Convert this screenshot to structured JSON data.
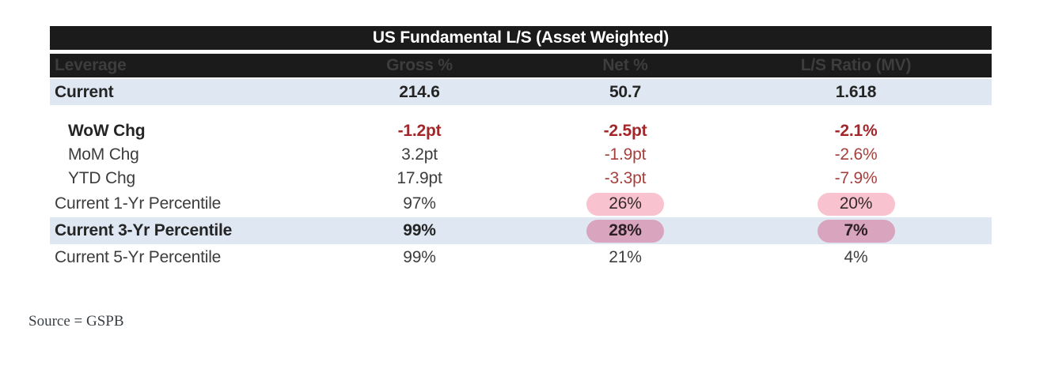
{
  "table": {
    "title": "US Fundamental L/S (Asset Weighted)",
    "columns": {
      "c0": "Leverage",
      "c1": "Gross %",
      "c2": "Net %",
      "c3": "L/S Ratio (MV)"
    },
    "rows": {
      "current": {
        "label": "Current",
        "gross": "214.6",
        "net": "50.7",
        "ls": "1.618"
      },
      "wow": {
        "label": "WoW Chg",
        "gross": "-1.2pt",
        "net": "-2.5pt",
        "ls": "-2.1%"
      },
      "mom": {
        "label": "MoM Chg",
        "gross": "3.2pt",
        "net": "-1.9pt",
        "ls": "-2.6%"
      },
      "ytd": {
        "label": "YTD Chg",
        "gross": "17.9pt",
        "net": "-3.3pt",
        "ls": "-7.9%"
      },
      "pct1yr": {
        "label": "Current 1-Yr Percentile",
        "gross": "97%",
        "net": "26%",
        "ls": "20%"
      },
      "pct3yr": {
        "label": "Current 3-Yr Percentile",
        "gross": "99%",
        "net": "28%",
        "ls": "7%"
      },
      "pct5yr": {
        "label": "Current 5-Yr Percentile",
        "gross": "99%",
        "net": "21%",
        "ls": "4%"
      }
    }
  },
  "colors": {
    "header_bg": "#1b1b1b",
    "accent_row_bg": "#dfe8f2",
    "negative_red_bold": "#a2262a",
    "negative_red": "#a6403d",
    "highlight_pink_light": "#f8c3cf",
    "highlight_pink_dark": "#d9a4bd"
  },
  "source": "Source = GSPB"
}
